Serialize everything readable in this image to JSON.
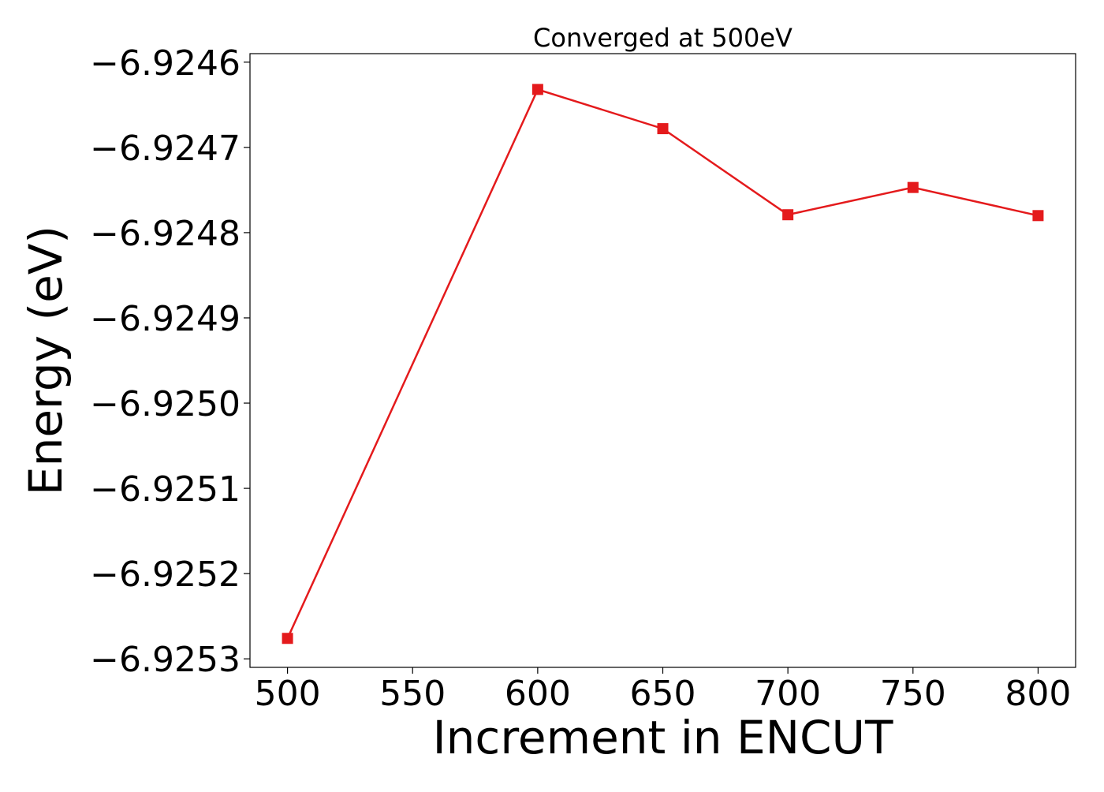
{
  "chart_data": {
    "type": "line",
    "title": "Converged at 500eV",
    "xlabel": "Increment in ENCUT",
    "ylabel": "Energy (eV)",
    "x": [
      500,
      600,
      650,
      700,
      750,
      800
    ],
    "series": [
      {
        "values": [
          -6.925276,
          -6.924632,
          -6.924678,
          -6.924779,
          -6.924747,
          -6.92478
        ],
        "color": "#e41a1c",
        "marker": "square"
      }
    ],
    "xlim": [
      485,
      815
    ],
    "ylim": [
      -6.92531,
      -6.92459
    ],
    "x_ticks": [
      500,
      550,
      600,
      650,
      700,
      750,
      800
    ],
    "x_tick_labels": [
      "500",
      "550",
      "600",
      "650",
      "700",
      "750",
      "800"
    ],
    "y_ticks": [
      -6.9246,
      -6.9247,
      -6.9248,
      -6.9249,
      -6.925,
      -6.9251,
      -6.9252,
      -6.9253
    ],
    "y_tick_labels": [
      "−6.9246",
      "−6.9247",
      "−6.9248",
      "−6.9249",
      "−6.9250",
      "−6.9251",
      "−6.9252",
      "−6.9253"
    ],
    "grid": false,
    "legend": "none"
  }
}
